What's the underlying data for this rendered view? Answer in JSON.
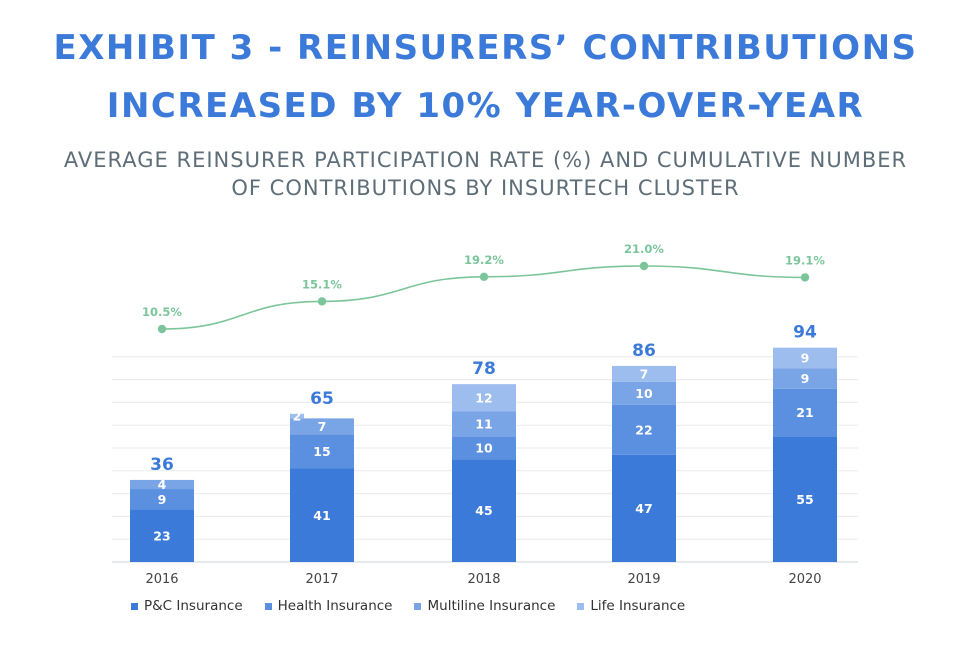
{
  "title_line1": "EXHIBIT 3 - REINSURERS’ CONTRIBUTIONS",
  "title_line2": "INCREASED BY 10% YEAR-OVER-YEAR",
  "subtitle_line1": "AVERAGE REINSURER PARTICIPATION RATE (%) AND CUMULATIVE NUMBER",
  "subtitle_line2": "OF CONTRIBUTIONS BY INSURTECH CLUSTER",
  "colors": {
    "pc": "#3b7ad8",
    "health": "#5b90e0",
    "multiline": "#79a4e6",
    "life": "#9cbdee",
    "line": "#7cc59a",
    "total_label": "#3b7ad8"
  },
  "chart_data": {
    "type": "bar",
    "stacked": true,
    "categories": [
      "2016",
      "2017",
      "2018",
      "2019",
      "2020"
    ],
    "series": [
      {
        "name": "P&C Insurance",
        "values": [
          23,
          41,
          45,
          47,
          55
        ]
      },
      {
        "name": "Health Insurance",
        "values": [
          9,
          15,
          10,
          22,
          21
        ]
      },
      {
        "name": "Multiline Insurance",
        "values": [
          4,
          7,
          11,
          10,
          9
        ]
      },
      {
        "name": "Life Insurance",
        "values": [
          0,
          2,
          12,
          7,
          9
        ]
      }
    ],
    "totals": [
      36,
      65,
      78,
      86,
      94
    ],
    "line": {
      "name": "Average reinsurer participation rate (%)",
      "values": [
        10.5,
        15.1,
        19.2,
        21.0,
        19.1
      ],
      "labels": [
        "10.5%",
        "15.1%",
        "19.2%",
        "21.0%",
        "19.1%"
      ]
    },
    "ylim": [
      0,
      100
    ],
    "line_ylim": [
      0,
      30
    ],
    "grid": true,
    "legend_position": "bottom"
  }
}
